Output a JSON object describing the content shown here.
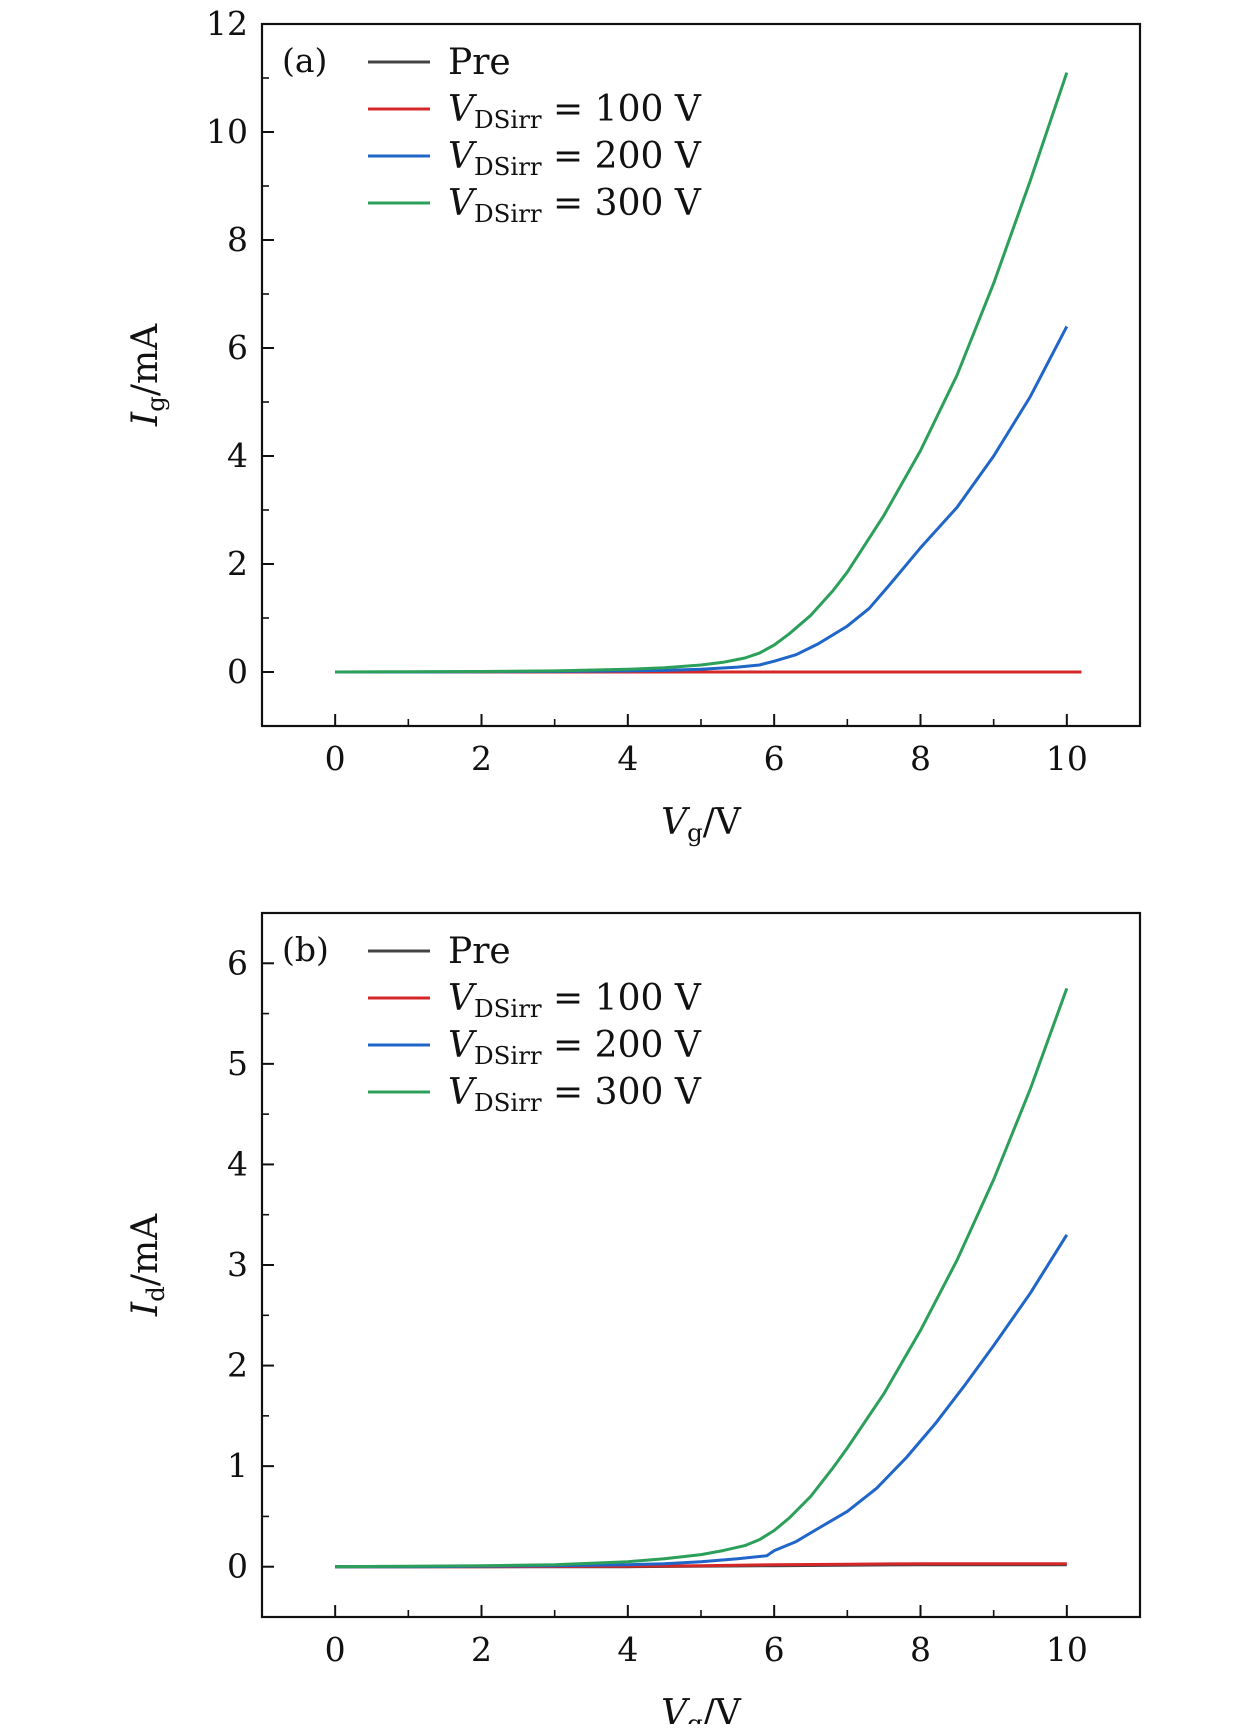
{
  "chart_data": [
    {
      "type": "line",
      "panel_label": "(a)",
      "xlabel": {
        "main": "V",
        "sub": "g",
        "rest": "/V"
      },
      "ylabel": {
        "main": "I",
        "sub": "g",
        "rest": "/mA"
      },
      "xlim": [
        -1,
        11
      ],
      "ylim": [
        -1,
        12
      ],
      "xticks": [
        0,
        2,
        4,
        6,
        8,
        10
      ],
      "yticks": [
        0,
        2,
        4,
        6,
        8,
        10,
        12
      ],
      "xtick_labels": [
        "0",
        "2",
        "4",
        "6",
        "8",
        "10"
      ],
      "ytick_labels": [
        "0",
        "2",
        "4",
        "6",
        "8",
        "10",
        "12"
      ],
      "legend_position": "top-left",
      "grid": false,
      "series": [
        {
          "name": {
            "main": "Pre",
            "sub": "",
            "rest": ""
          },
          "color": "#444444",
          "x": [
            0,
            2,
            4,
            5,
            6,
            7,
            8,
            10
          ],
          "y": [
            0,
            0,
            0,
            0,
            0,
            0,
            0,
            0
          ]
        },
        {
          "name": {
            "main": "V",
            "sub": "DSirr",
            "rest": " = 100 V"
          },
          "color": "#d62728",
          "x": [
            0,
            2,
            4,
            5,
            6,
            7,
            8,
            10.2
          ],
          "y": [
            0,
            0,
            0,
            0,
            0,
            0,
            0,
            0
          ]
        },
        {
          "name": {
            "main": "V",
            "sub": "DSirr",
            "rest": " = 200 V"
          },
          "color": "#1f66c8",
          "x": [
            0,
            1,
            2,
            3,
            4,
            4.5,
            5,
            5.5,
            5.8,
            6.0,
            6.3,
            6.6,
            7.0,
            7.3,
            7.6,
            8.0,
            8.5,
            9.0,
            9.5,
            10.0
          ],
          "y": [
            0,
            0,
            0.005,
            0.01,
            0.02,
            0.03,
            0.05,
            0.09,
            0.13,
            0.2,
            0.32,
            0.52,
            0.85,
            1.18,
            1.65,
            2.3,
            3.05,
            4.0,
            5.1,
            6.4
          ]
        },
        {
          "name": {
            "main": "V",
            "sub": "DSirr",
            "rest": " = 300 V"
          },
          "color": "#2ca05a",
          "x": [
            0,
            1,
            2,
            3,
            4,
            4.5,
            5,
            5.3,
            5.6,
            5.8,
            6.0,
            6.2,
            6.5,
            6.8,
            7.0,
            7.5,
            8.0,
            8.5,
            9.0,
            9.5,
            10.0
          ],
          "y": [
            0,
            0.005,
            0.01,
            0.02,
            0.05,
            0.08,
            0.13,
            0.18,
            0.26,
            0.35,
            0.5,
            0.7,
            1.05,
            1.5,
            1.85,
            2.9,
            4.1,
            5.5,
            7.2,
            9.1,
            11.1
          ]
        }
      ]
    },
    {
      "type": "line",
      "panel_label": "(b)",
      "xlabel": {
        "main": "V",
        "sub": "g",
        "rest": "/V"
      },
      "ylabel": {
        "main": "I",
        "sub": "d",
        "rest": "/mA"
      },
      "xlim": [
        -1,
        11
      ],
      "ylim": [
        -0.5,
        6.5
      ],
      "xticks": [
        0,
        2,
        4,
        6,
        8,
        10
      ],
      "yticks": [
        0,
        1,
        2,
        3,
        4,
        5,
        6
      ],
      "xtick_labels": [
        "0",
        "2",
        "4",
        "6",
        "8",
        "10"
      ],
      "ytick_labels": [
        "0",
        "1",
        "2",
        "3",
        "4",
        "5",
        "6"
      ],
      "legend_position": "top-left",
      "grid": false,
      "series": [
        {
          "name": {
            "main": "Pre",
            "sub": "",
            "rest": ""
          },
          "color": "#444444",
          "x": [
            0,
            2,
            4,
            6,
            8,
            10
          ],
          "y": [
            0,
            0,
            0,
            0.01,
            0.02,
            0.02
          ]
        },
        {
          "name": {
            "main": "V",
            "sub": "DSirr",
            "rest": " = 100 V"
          },
          "color": "#d62728",
          "x": [
            0,
            2,
            4,
            5,
            6,
            7,
            8,
            9,
            10
          ],
          "y": [
            0,
            0,
            0.005,
            0.01,
            0.02,
            0.025,
            0.03,
            0.03,
            0.03
          ]
        },
        {
          "name": {
            "main": "V",
            "sub": "DSirr",
            "rest": " = 200 V"
          },
          "color": "#1f66c8",
          "x": [
            0,
            1,
            2,
            3,
            4,
            4.5,
            5,
            5.5,
            5.9,
            6.0,
            6.3,
            6.6,
            7.0,
            7.4,
            7.8,
            8.2,
            8.6,
            9.0,
            9.5,
            10.0
          ],
          "y": [
            0,
            0,
            0.005,
            0.01,
            0.02,
            0.03,
            0.05,
            0.08,
            0.11,
            0.16,
            0.25,
            0.38,
            0.55,
            0.78,
            1.08,
            1.42,
            1.8,
            2.2,
            2.72,
            3.3
          ]
        },
        {
          "name": {
            "main": "V",
            "sub": "DSirr",
            "rest": " = 300 V"
          },
          "color": "#2ca05a",
          "x": [
            0,
            1,
            2,
            3,
            4,
            4.5,
            5,
            5.3,
            5.6,
            5.8,
            6.0,
            6.2,
            6.5,
            6.8,
            7.0,
            7.5,
            8.0,
            8.5,
            9.0,
            9.5,
            10.0
          ],
          "y": [
            0,
            0.005,
            0.01,
            0.02,
            0.05,
            0.08,
            0.12,
            0.16,
            0.21,
            0.27,
            0.36,
            0.48,
            0.7,
            0.98,
            1.18,
            1.72,
            2.35,
            3.05,
            3.85,
            4.75,
            5.75
          ]
        }
      ]
    }
  ]
}
